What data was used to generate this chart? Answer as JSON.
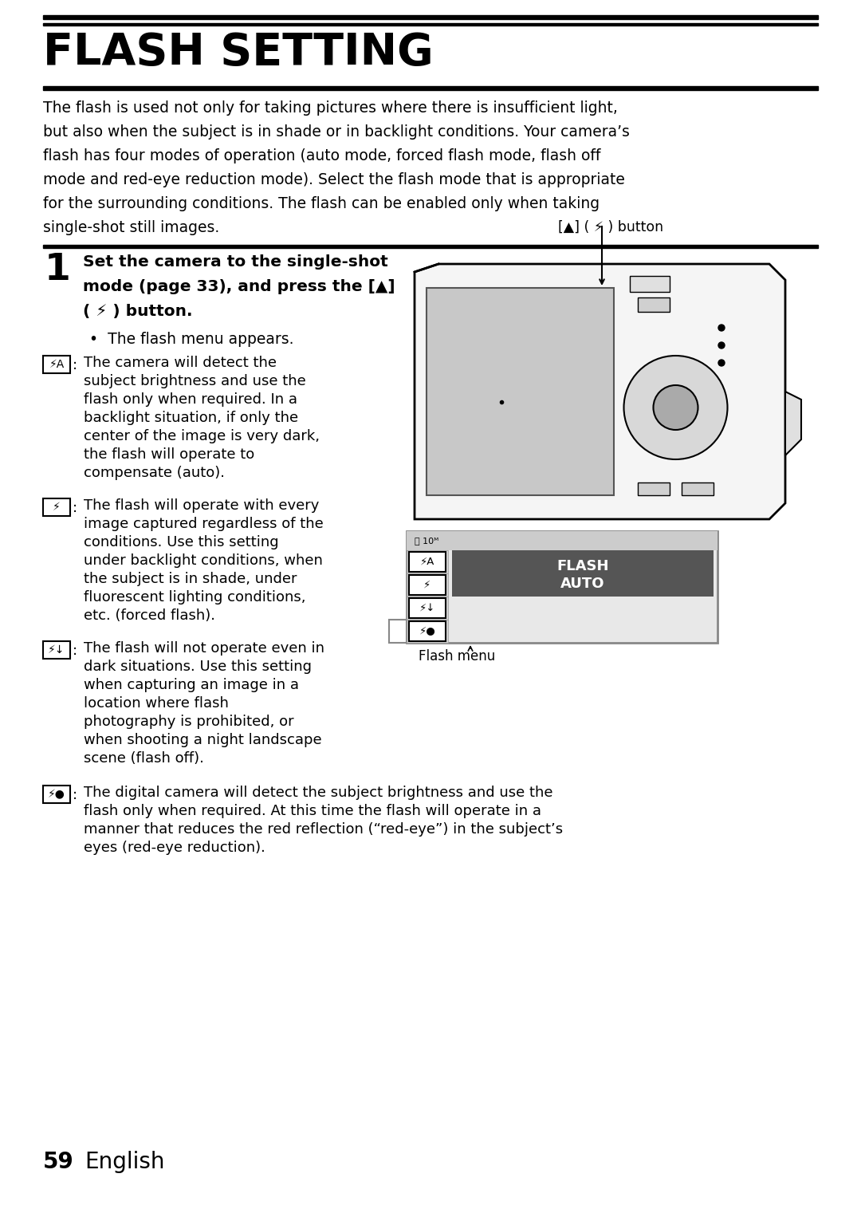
{
  "title": "FLASH SETTING",
  "bg_color": "#ffffff",
  "intro_text": [
    "The flash is used not only for taking pictures where there is insufficient light,",
    "but also when the subject is in shade or in backlight conditions. Your camera’s",
    "flash has four modes of operation (auto mode, forced flash mode, flash off",
    "mode and red-eye reduction mode). Select the flash mode that is appropriate",
    "for the surrounding conditions. The flash can be enabled only when taking",
    "single-shot still images."
  ],
  "step1_lines": [
    "Set the camera to the single-shot",
    "mode (page 33), and press the [▲]",
    "( ⚡ ) button."
  ],
  "step1_sub": "•  The flash menu appears.",
  "button_label": "[▲] ( ⚡ ) button",
  "item1_icon": "⚡A",
  "item1_text": [
    "The camera will detect the",
    "subject brightness and use the",
    "flash only when required. In a",
    "backlight situation, if only the",
    "center of the image is very dark,",
    "the flash will operate to",
    "compensate (auto)."
  ],
  "item2_icon": "⚡",
  "item2_text": [
    "The flash will operate with every",
    "image captured regardless of the",
    "conditions. Use this setting",
    "under backlight conditions, when",
    "the subject is in shade, under",
    "fluorescent lighting conditions,",
    "etc. (forced flash)."
  ],
  "item3_icon": "⚡↓",
  "item3_text": [
    "The flash will not operate even in",
    "dark situations. Use this setting",
    "when capturing an image in a",
    "location where flash",
    "photography is prohibited, or",
    "when shooting a night landscape",
    "scene (flash off)."
  ],
  "item4_icon": "⚡●",
  "item4_text": [
    "The digital camera will detect the subject brightness and use the",
    "flash only when required. At this time the flash will operate in a",
    "manner that reduces the red reflection (“red-eye”) in the subject’s",
    "eyes (red-eye reduction)."
  ],
  "flash_menu_label": "Flash menu",
  "flash_highlight_text1": "FLASH",
  "flash_highlight_text2": "AUTO",
  "page_number": "59",
  "page_lang": "English",
  "ml": 54,
  "mr": 1026
}
